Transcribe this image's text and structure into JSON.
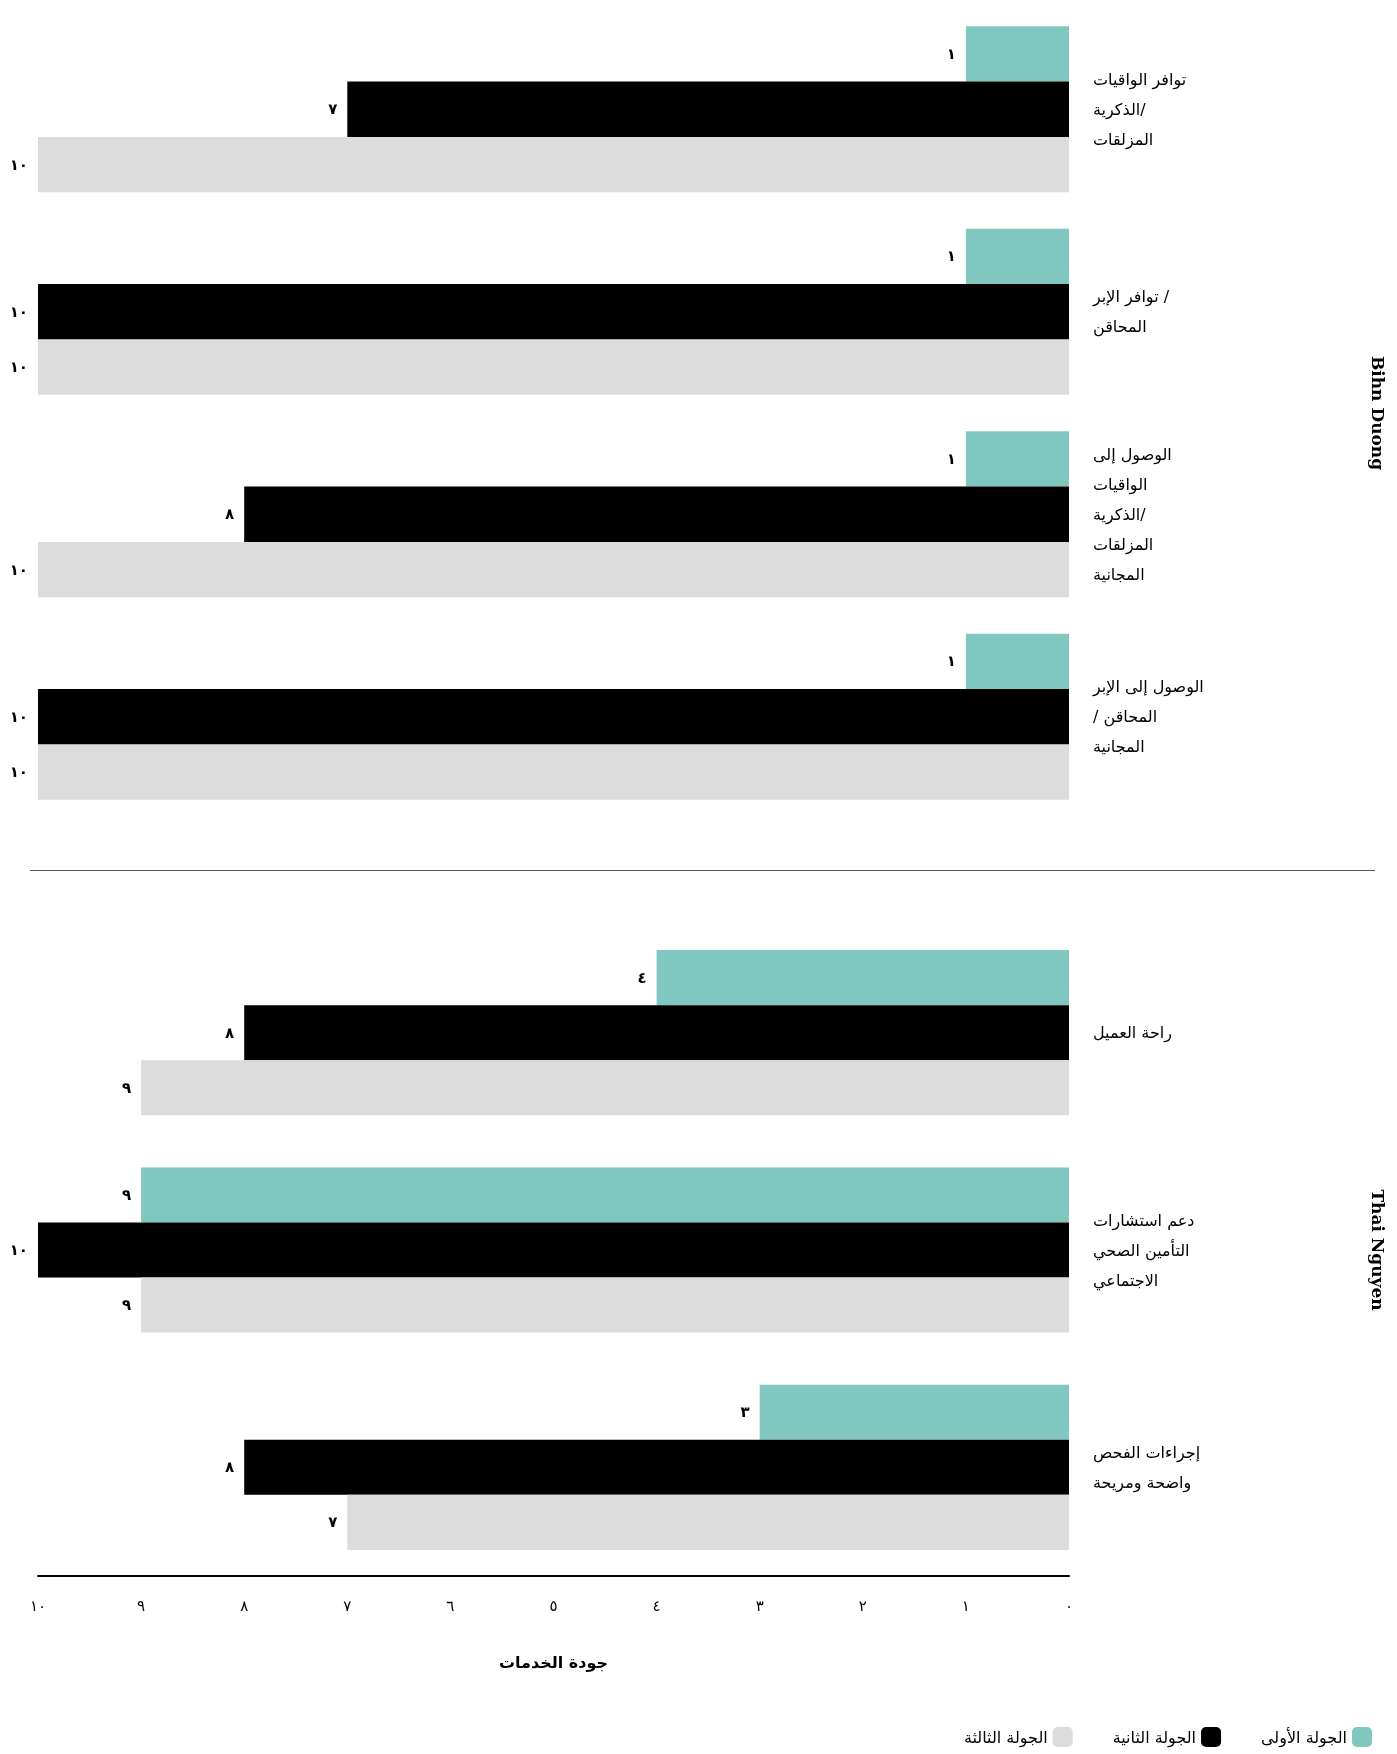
{
  "chart_data": [
    {
      "type": "bar",
      "orientation": "horizontal",
      "ylabel": "Bihn Duong",
      "categories": [
        "توافر الواقيات الذكرية/ المزلقات",
        "توافر الإبر / المحاقن",
        "الوصول إلى الواقيات الذكرية/ المزلقات المجانية",
        "الوصول إلى الإبر/ المحاقن المجانية"
      ],
      "series": [
        {
          "color": "#7fc7bf",
          "values": [
            1,
            1,
            1,
            1
          ],
          "value_labels": [
            "١",
            "١",
            "١",
            "١"
          ]
        },
        {
          "color": "#000000",
          "values": [
            7,
            10,
            8,
            10
          ],
          "value_labels": [
            "٧",
            "١٠",
            "٨",
            "١٠"
          ]
        },
        {
          "color": "#dcdcdc",
          "values": [
            10,
            10,
            10,
            10
          ],
          "value_labels": [
            "١٠",
            "١٠",
            "١٠",
            "١٠"
          ]
        }
      ],
      "xlim": [
        10,
        0
      ],
      "tick_labels": "y",
      "grid": false,
      "legend": false
    },
    {
      "type": "bar",
      "orientation": "horizontal",
      "ylabel": "Thai Nguyen",
      "xlabel": "جودة الخدمات",
      "categories": [
        "راحة العميل",
        "دعم استشارات التأمين الصحي الاجتماعي",
        "إجراءات الفحص واضحة ومريحة"
      ],
      "series": [
        {
          "name": "الجولة الأولى",
          "color": "#7fc7bf",
          "values": [
            4,
            9,
            3
          ],
          "value_labels": [
            "٤",
            "٩",
            "٣"
          ]
        },
        {
          "name": "الجولة الثانية",
          "color": "#000000",
          "values": [
            8,
            10,
            8
          ],
          "value_labels": [
            "٨",
            "١٠",
            "٨"
          ]
        },
        {
          "name": "الجولة الثالثة",
          "color": "#dcdcdc",
          "values": [
            9,
            9,
            7
          ],
          "value_labels": [
            "٩",
            "٩",
            "٧"
          ]
        }
      ],
      "xlim": [
        10,
        0
      ],
      "xticks": [
        {
          "value": 0,
          "label": "٠"
        },
        {
          "value": 1,
          "label": "١"
        },
        {
          "value": 2,
          "label": "٢"
        },
        {
          "value": 3,
          "label": "٣"
        },
        {
          "value": 4,
          "label": "٤"
        },
        {
          "value": 5,
          "label": "٥"
        },
        {
          "value": 6,
          "label": "٦"
        },
        {
          "value": 7,
          "label": "٧"
        },
        {
          "value": 8,
          "label": "٨"
        },
        {
          "value": 9,
          "label": "٩"
        },
        {
          "value": 10,
          "label": "١٠"
        }
      ],
      "grid": false,
      "legend": "bottom right"
    }
  ]
}
